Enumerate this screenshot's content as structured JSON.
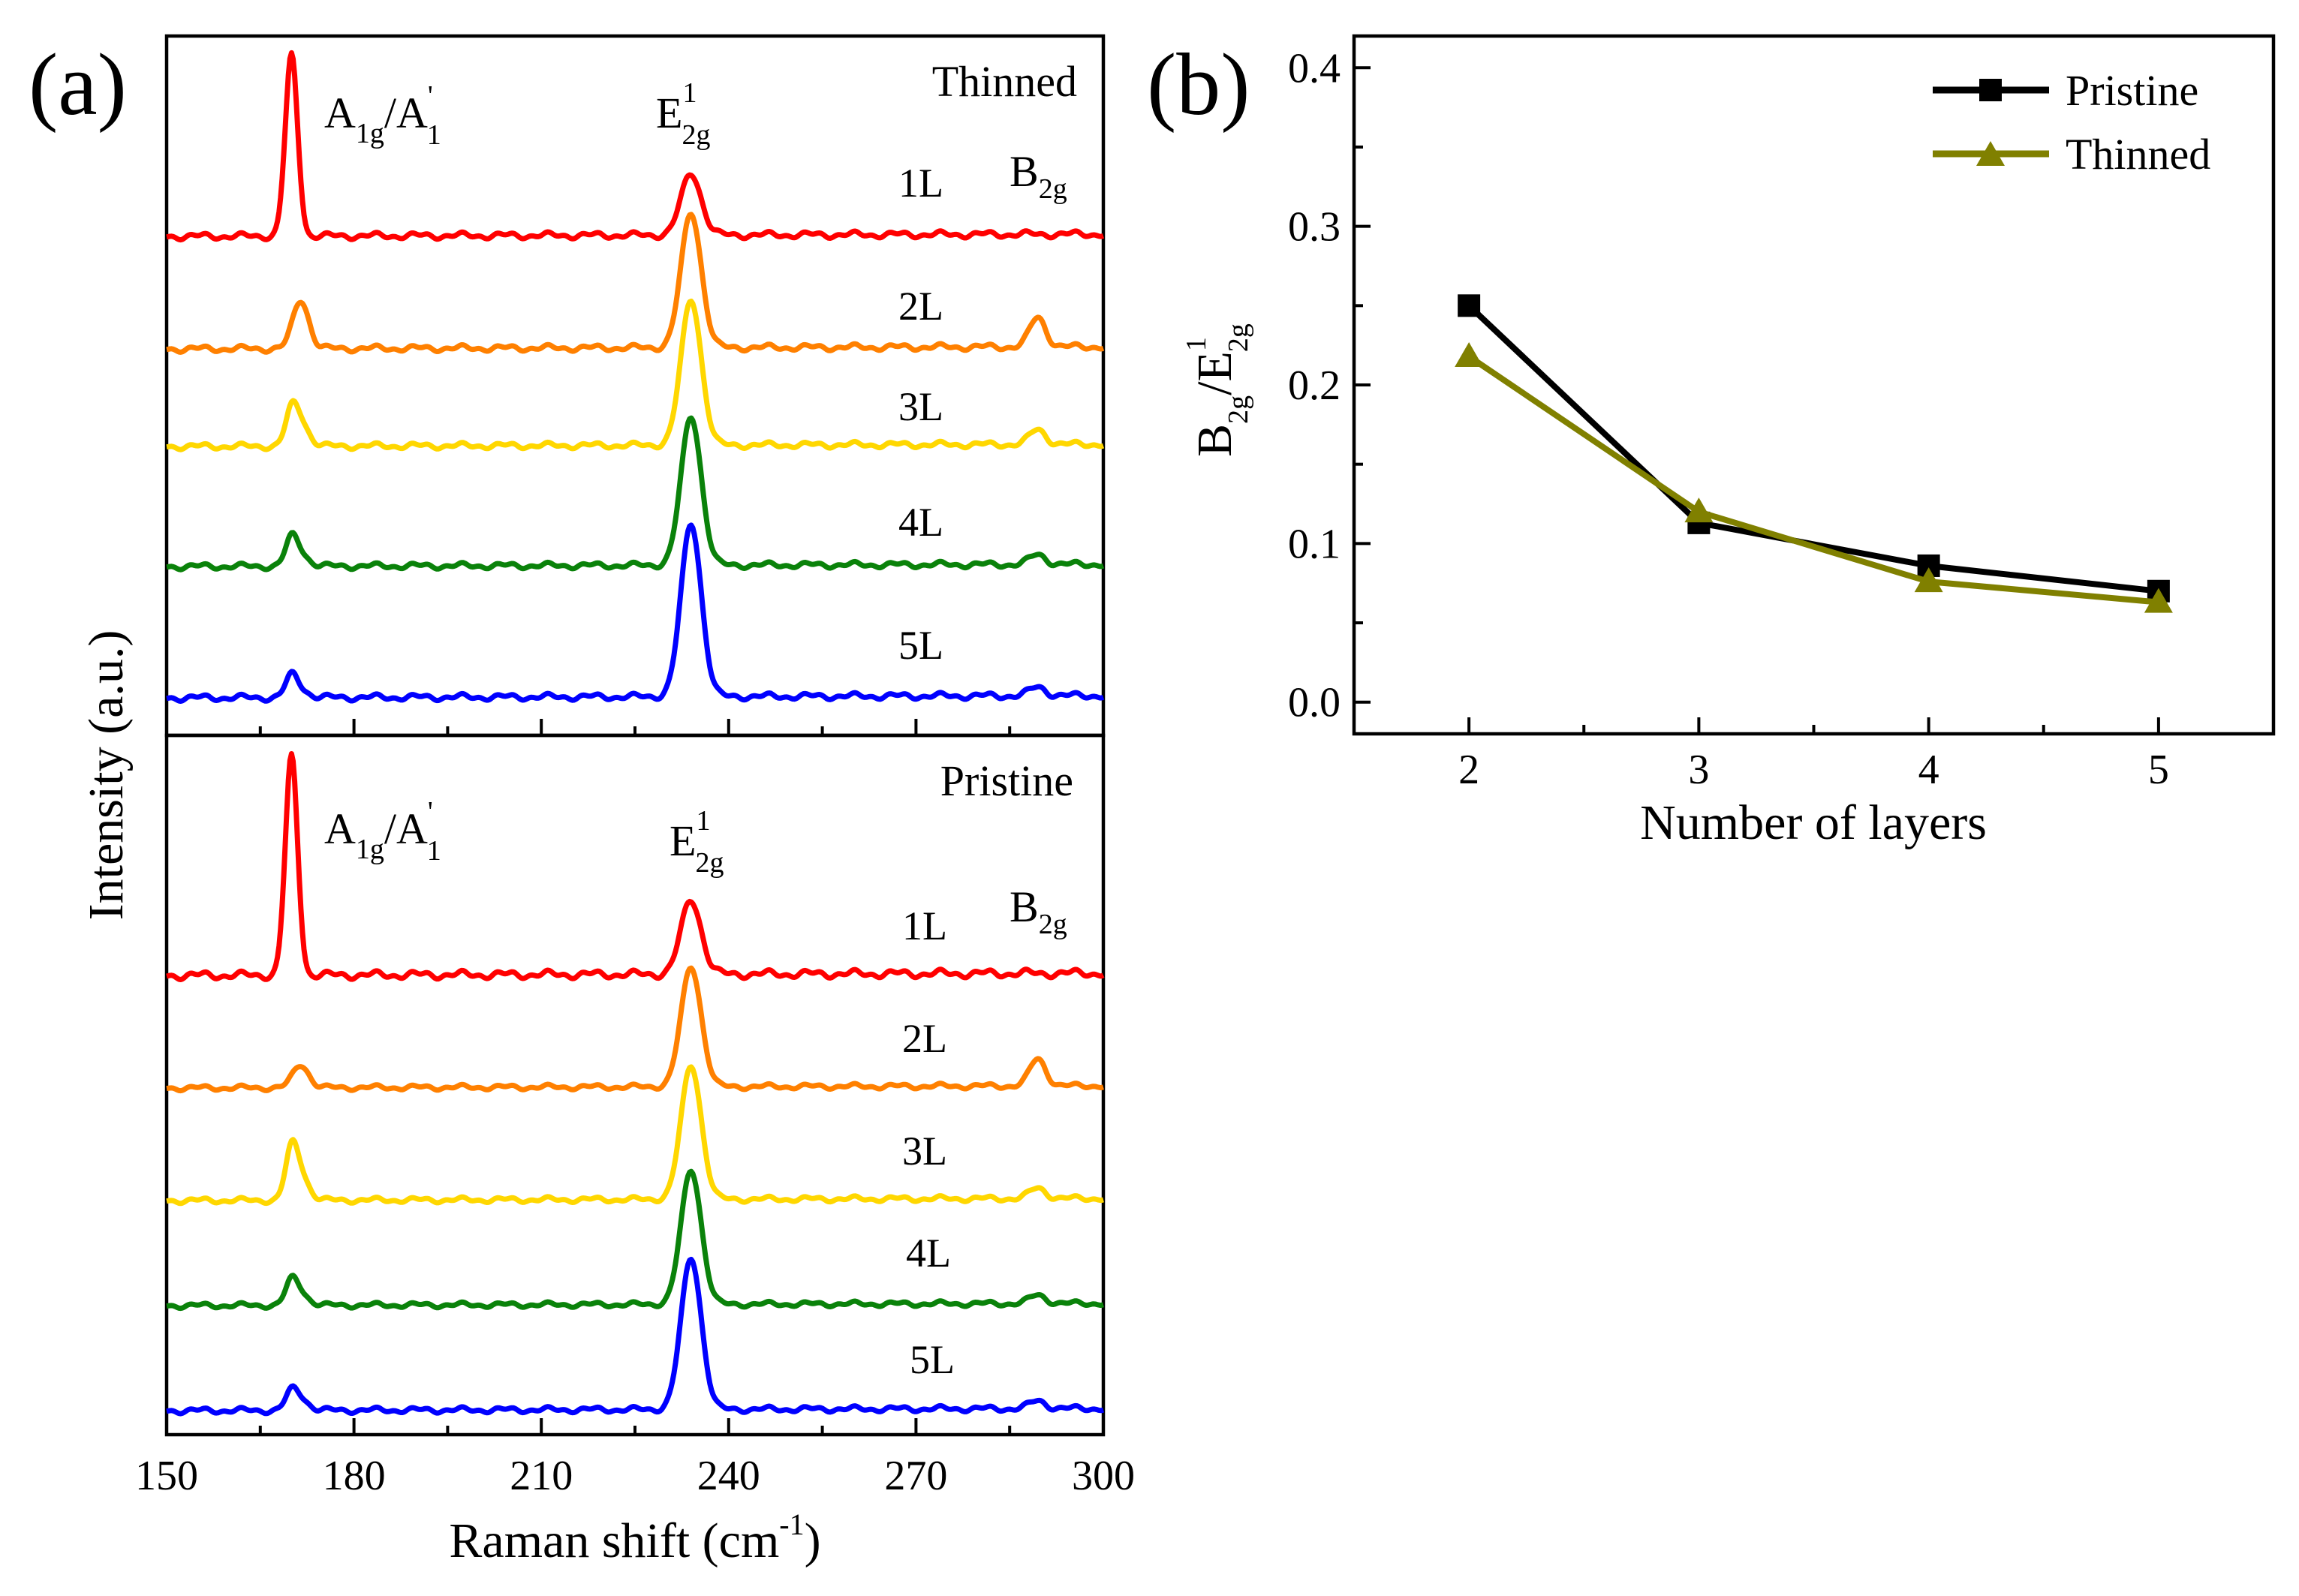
{
  "chart_data": [
    {
      "panel": "(a)",
      "type": "line",
      "xlabel": "Raman shift (cm",
      "xlabel_sup": "-1",
      "xlabel_end": ")",
      "ylabel": "Intensity (a.u.)",
      "xlim": [
        150,
        300
      ],
      "xticks": [
        "150",
        "180",
        "210",
        "240",
        "270",
        "300"
      ],
      "peaks": {
        "A": {
          "main": "A",
          "sub1": "1g",
          "mid": "/A",
          "sup2": "'",
          "sub2": "1"
        },
        "E": {
          "main": "E",
          "sup": "1",
          "sub": "2g"
        },
        "B": {
          "main": "B",
          "sub": "2g"
        }
      },
      "subplots": [
        {
          "title": "Thinned",
          "series": [
            {
              "name": "1L",
              "color": "#ff0000",
              "A1": 1.0,
              "A1b": 0.0,
              "E": 0.34,
              "B": 0.0
            },
            {
              "name": "2L",
              "color": "#ff8000",
              "A1": 0.0,
              "A1b": 0.28,
              "E": 0.78,
              "B": 0.17
            },
            {
              "name": "3L",
              "color": "#ffd700",
              "A1": 0.18,
              "A1b": 0.14,
              "E": 0.88,
              "B": 0.09
            },
            {
              "name": "4L",
              "color": "#0a820a",
              "A1": 0.15,
              "A1b": 0.07,
              "E": 0.9,
              "B": 0.06
            },
            {
              "name": "5L",
              "color": "#0000ff",
              "A1": 0.11,
              "A1b": 0.04,
              "E": 0.98,
              "B": 0.05
            }
          ]
        },
        {
          "title": "Pristine",
          "series": [
            {
              "name": "1L",
              "color": "#ff0000",
              "A1": 1.0,
              "A1b": 0.0,
              "E": 0.34,
              "B": 0.0
            },
            {
              "name": "2L",
              "color": "#ff8000",
              "A1": 0.0,
              "A1b": 0.16,
              "E": 0.84,
              "B": 0.19
            },
            {
              "name": "3L",
              "color": "#ffd700",
              "A1": 0.3,
              "A1b": 0.16,
              "E": 0.89,
              "B": 0.07
            },
            {
              "name": "4L",
              "color": "#0a820a",
              "A1": 0.15,
              "A1b": 0.08,
              "E": 0.94,
              "B": 0.06
            },
            {
              "name": "5L",
              "color": "#0000ff",
              "A1": 0.1,
              "A1b": 0.07,
              "E": 0.96,
              "B": 0.05
            }
          ]
        }
      ]
    },
    {
      "panel": "(b)",
      "type": "line",
      "xlabel": "Number of layers",
      "ylabel_parts": {
        "a": "B",
        "a_sub": "2g",
        "slash": "/E",
        "b_sup": "1",
        "b_sub": "2g"
      },
      "categories": [
        2,
        3,
        4,
        5
      ],
      "xticks": [
        "2",
        "3",
        "4",
        "5"
      ],
      "xlim": [
        1.5,
        5.5
      ],
      "ylim": [
        -0.02,
        0.42
      ],
      "yticks": [
        "0.0",
        "0.1",
        "0.2",
        "0.3",
        "0.4"
      ],
      "series": [
        {
          "name": "Pristine",
          "color": "#000000",
          "marker": "square",
          "values": [
            0.25,
            0.113,
            0.086,
            0.07
          ]
        },
        {
          "name": "Thinned",
          "color": "#808000",
          "marker": "triangle",
          "values": [
            0.218,
            0.12,
            0.076,
            0.063
          ]
        }
      ],
      "legend": "top-right"
    }
  ]
}
